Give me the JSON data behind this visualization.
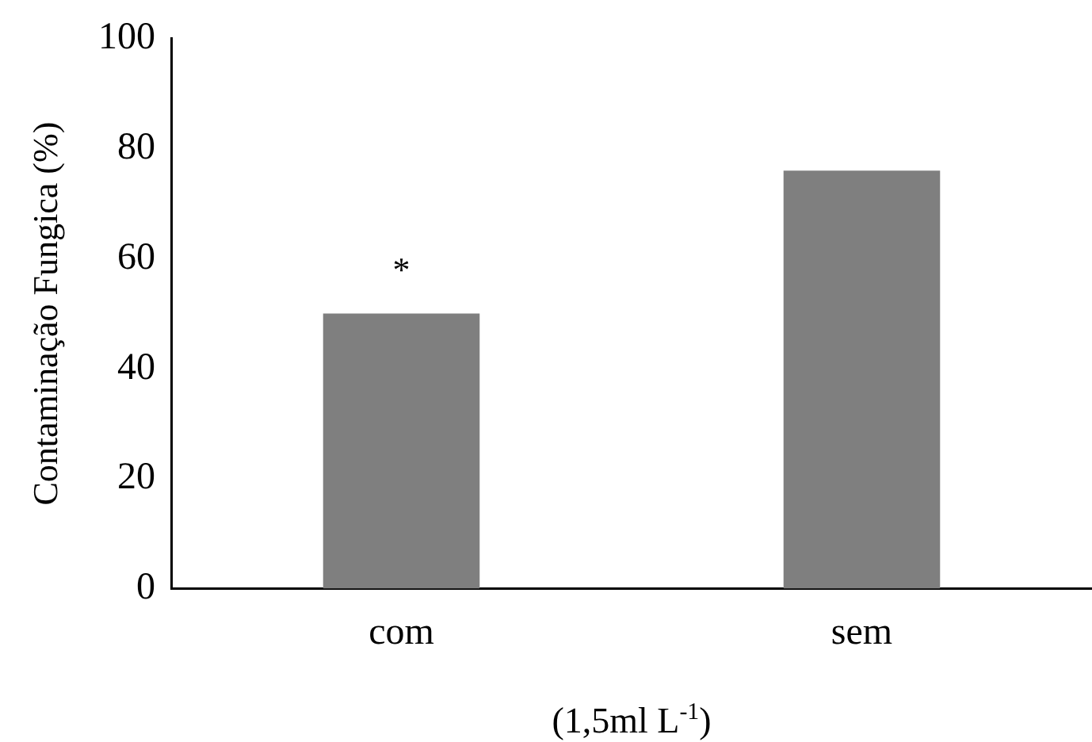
{
  "chart_data": {
    "type": "bar",
    "categories": [
      "com",
      "sem"
    ],
    "values": [
      50,
      76
    ],
    "color": "#7f7f7f",
    "ylim": [
      0,
      100
    ],
    "yticks": [
      0,
      20,
      40,
      60,
      80,
      100
    ],
    "grid": false,
    "legend": false,
    "xlabel": "(1,5ml L$^{-1}$)",
    "ylabel": "Contaminação Fungica (%)",
    "annotations": [
      {
        "text": "*",
        "x": "com",
        "y": 50
      }
    ]
  }
}
